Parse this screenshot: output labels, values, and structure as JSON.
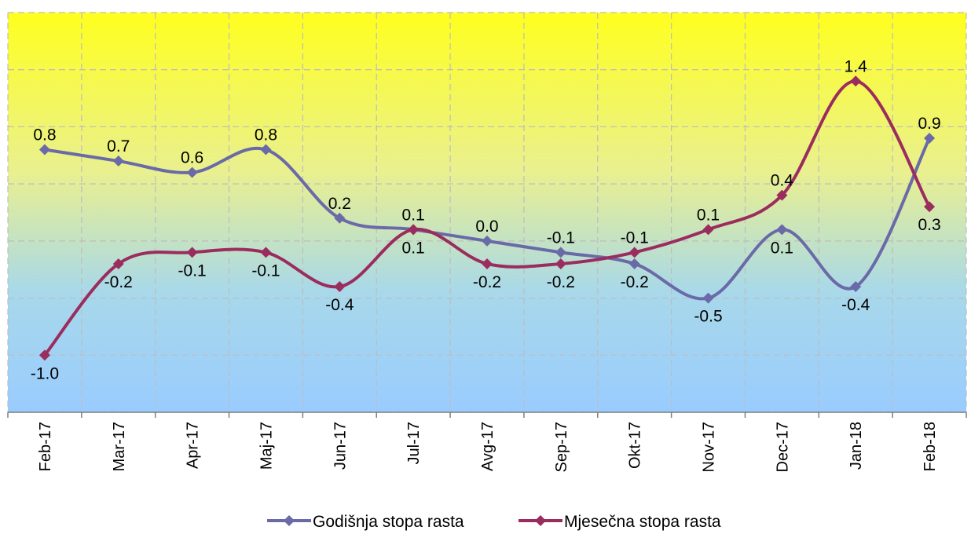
{
  "chart_data": {
    "type": "line",
    "categories": [
      "Feb-17",
      "Mar-17",
      "Apr-17",
      "Maj-17",
      "Jun-17",
      "Jul-17",
      "Avg-17",
      "Sep-17",
      "Okt-17",
      "Nov-17",
      "Dec-17",
      "Jan-18",
      "Feb-18"
    ],
    "series": [
      {
        "name": "Godišnja stopa rasta",
        "color": "#6a6aa8",
        "values": [
          0.8,
          0.7,
          0.6,
          0.8,
          0.2,
          0.1,
          0.0,
          -0.1,
          -0.2,
          -0.5,
          0.1,
          -0.4,
          0.9
        ],
        "labels": [
          "0.8",
          "0.7",
          "0.6",
          "0.8",
          "0.2",
          "0.1",
          "0.0",
          "-0.1",
          "-0.2",
          "-0.5",
          "0.1",
          "-0.4",
          "0.9"
        ]
      },
      {
        "name": "Mjesečna stopa rasta",
        "color": "#9b2d5e",
        "values": [
          -1.0,
          -0.2,
          -0.1,
          -0.1,
          -0.4,
          0.1,
          -0.2,
          -0.2,
          -0.1,
          0.1,
          0.4,
          1.4,
          0.3
        ],
        "labels": [
          "-1.0",
          "-0.2",
          "-0.1",
          "-0.1",
          "-0.4",
          "0.1",
          "-0.2",
          "-0.2",
          "-0.1",
          "0.1",
          "0.4",
          "1.4",
          "0.3"
        ]
      }
    ],
    "title": "",
    "xlabel": "",
    "ylabel": "",
    "ylim": [
      -1.5,
      2.0
    ],
    "grid": true,
    "legend_position": "bottom",
    "background_gradient": [
      "#ffff1e",
      "#e9f090",
      "#a8d8ea",
      "#99ccff"
    ]
  }
}
